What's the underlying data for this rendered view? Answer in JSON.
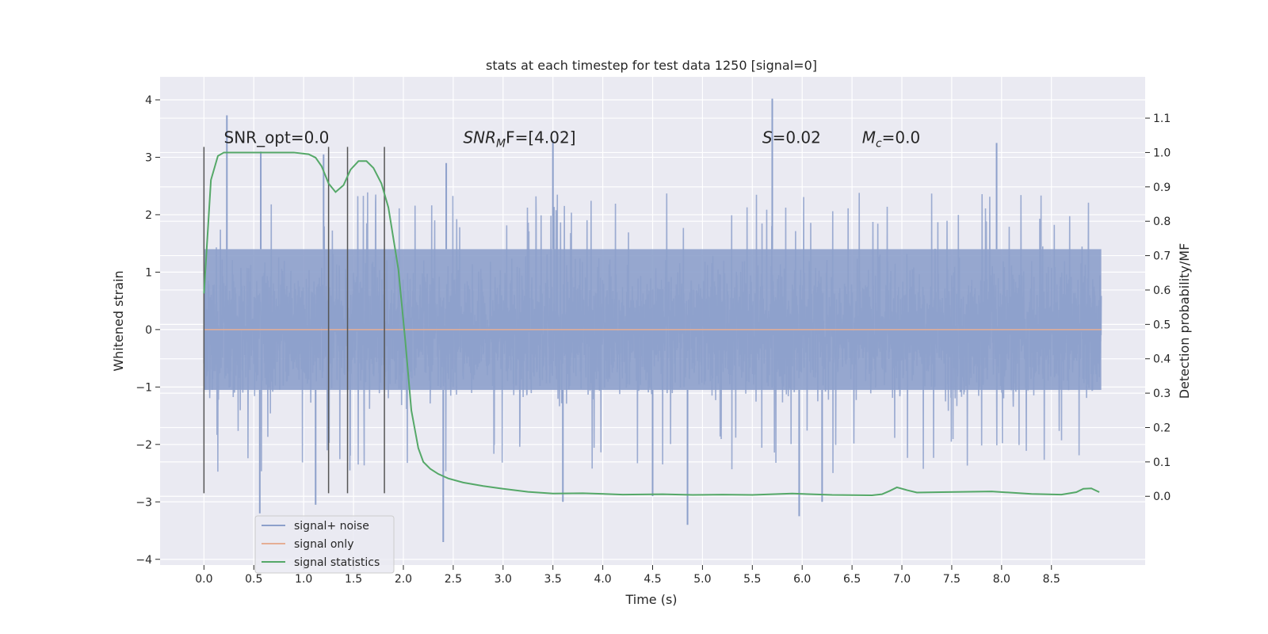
{
  "chart_data": {
    "type": "line",
    "title": "stats at each timestep for test data 1250 [signal=0]",
    "xlabel": "Time (s)",
    "ylabel": "Whitened strain",
    "y2label": "Detection probability/MF",
    "xlim": [
      -0.44,
      9.44
    ],
    "ylim": [
      -4.1,
      4.4
    ],
    "y2lim": [
      -0.2,
      1.22
    ],
    "xticks": [
      0.0,
      0.5,
      1.0,
      1.5,
      2.0,
      2.5,
      3.0,
      3.5,
      4.0,
      4.5,
      5.0,
      5.5,
      6.0,
      6.5,
      7.0,
      7.5,
      8.0,
      8.5
    ],
    "xtick_labels": [
      "0.0",
      "0.5",
      "1.0",
      "1.5",
      "2.0",
      "2.5",
      "3.0",
      "3.5",
      "4.0",
      "4.5",
      "5.0",
      "5.5",
      "6.0",
      "6.5",
      "7.0",
      "7.5",
      "8.0",
      "8.5"
    ],
    "yticks": [
      4,
      3,
      2,
      1,
      0,
      -1,
      -2,
      -3,
      -4
    ],
    "ytick_labels": [
      "4",
      "3",
      "2",
      "1",
      "0",
      "−1",
      "−2",
      "−3",
      "−4"
    ],
    "y2ticks": [
      1.1,
      1.0,
      0.9,
      0.8,
      0.7,
      0.6,
      0.5,
      0.4,
      0.3,
      0.2,
      0.1,
      0.0
    ],
    "y2tick_labels": [
      "1.1",
      "1.0",
      "0.9",
      "0.8",
      "0.7",
      "0.6",
      "0.5",
      "0.4",
      "0.3",
      "0.2",
      "0.1",
      "0.0"
    ],
    "grid": true,
    "legend_position": "lower-left",
    "colors": {
      "noise": "#8da0cb",
      "signal_only": "#e5ae95",
      "statistics": "#55a868",
      "vlines": "#555555",
      "background": "#eaeaf2",
      "grid": "#ffffff"
    },
    "noise_series": {
      "name": "signal+ noise",
      "x_start": 0.0,
      "x_end": 9.0,
      "band_low": -1.05,
      "band_high": 1.4,
      "typical_low": -2.5,
      "typical_high": 2.4,
      "spike_high": [
        {
          "x": 0.23,
          "y": 3.73
        },
        {
          "x": 0.57,
          "y": 3.1
        },
        {
          "x": 1.2,
          "y": 3.05
        },
        {
          "x": 2.43,
          "y": 2.9
        },
        {
          "x": 3.5,
          "y": 3.3
        },
        {
          "x": 5.7,
          "y": 4.02
        },
        {
          "x": 7.95,
          "y": 3.25
        }
      ],
      "spike_low": [
        {
          "x": 0.56,
          "y": -3.2
        },
        {
          "x": 1.12,
          "y": -3.05
        },
        {
          "x": 2.4,
          "y": -3.7
        },
        {
          "x": 3.6,
          "y": -3.0
        },
        {
          "x": 4.5,
          "y": -2.9
        },
        {
          "x": 4.85,
          "y": -3.4
        },
        {
          "x": 5.97,
          "y": -3.25
        },
        {
          "x": 6.2,
          "y": -3.0
        }
      ]
    },
    "signal_only": {
      "name": "signal only",
      "x": [
        0.0,
        9.0
      ],
      "y": [
        0.0,
        0.0
      ]
    },
    "statistics_series": {
      "name": "signal statistics",
      "axis": "right",
      "x": [
        0.0,
        0.07,
        0.14,
        0.2,
        0.35,
        0.6,
        0.9,
        1.05,
        1.12,
        1.18,
        1.25,
        1.32,
        1.4,
        1.47,
        1.55,
        1.63,
        1.7,
        1.78,
        1.85,
        1.95,
        2.02,
        2.08,
        2.15,
        2.2,
        2.27,
        2.35,
        2.45,
        2.6,
        2.8,
        3.0,
        3.25,
        3.5,
        3.8,
        4.2,
        4.6,
        4.9,
        5.2,
        5.5,
        5.9,
        6.3,
        6.7,
        6.8,
        6.88,
        6.95,
        7.05,
        7.15,
        7.4,
        7.9,
        8.3,
        8.6,
        8.75,
        8.82,
        8.9,
        8.98
      ],
      "y": [
        0.59,
        0.92,
        0.99,
        1.0,
        1.0,
        1.0,
        1.0,
        0.995,
        0.985,
        0.96,
        0.91,
        0.885,
        0.905,
        0.95,
        0.975,
        0.975,
        0.955,
        0.91,
        0.84,
        0.66,
        0.45,
        0.25,
        0.14,
        0.1,
        0.08,
        0.065,
        0.052,
        0.04,
        0.03,
        0.022,
        0.013,
        0.008,
        0.009,
        0.005,
        0.006,
        0.004,
        0.005,
        0.004,
        0.008,
        0.004,
        0.003,
        0.006,
        0.016,
        0.026,
        0.018,
        0.011,
        0.012,
        0.014,
        0.007,
        0.005,
        0.012,
        0.022,
        0.023,
        0.012
      ]
    },
    "vlines": [
      {
        "x": 0.0,
        "ymin": -2.85,
        "ymax": 3.18
      },
      {
        "x": 1.25,
        "ymin": -2.85,
        "ymax": 3.18
      },
      {
        "x": 1.44,
        "ymin": -2.85,
        "ymax": 3.18
      },
      {
        "x": 1.81,
        "ymin": -2.85,
        "ymax": 3.18
      }
    ],
    "annotations": [
      {
        "text": "SNR_opt=0.0",
        "x": 0.2,
        "y": 3.25
      },
      {
        "text": "SNR",
        "sub": "M",
        "after": "F=[4.02]",
        "italic_prefix": true,
        "x": 2.6,
        "y": 3.25
      },
      {
        "text": "S",
        "after": "=0.02",
        "italic_prefix": true,
        "x": 5.6,
        "y": 3.25
      },
      {
        "text": "M",
        "sub": "c",
        "after": "=0.0",
        "italic_prefix": true,
        "x": 6.6,
        "y": 3.25
      }
    ],
    "legend": [
      {
        "label": "signal+ noise",
        "color": "#8da0cb"
      },
      {
        "label": "signal only",
        "color": "#e5ae95"
      },
      {
        "label": "signal statistics",
        "color": "#55a868"
      }
    ]
  }
}
